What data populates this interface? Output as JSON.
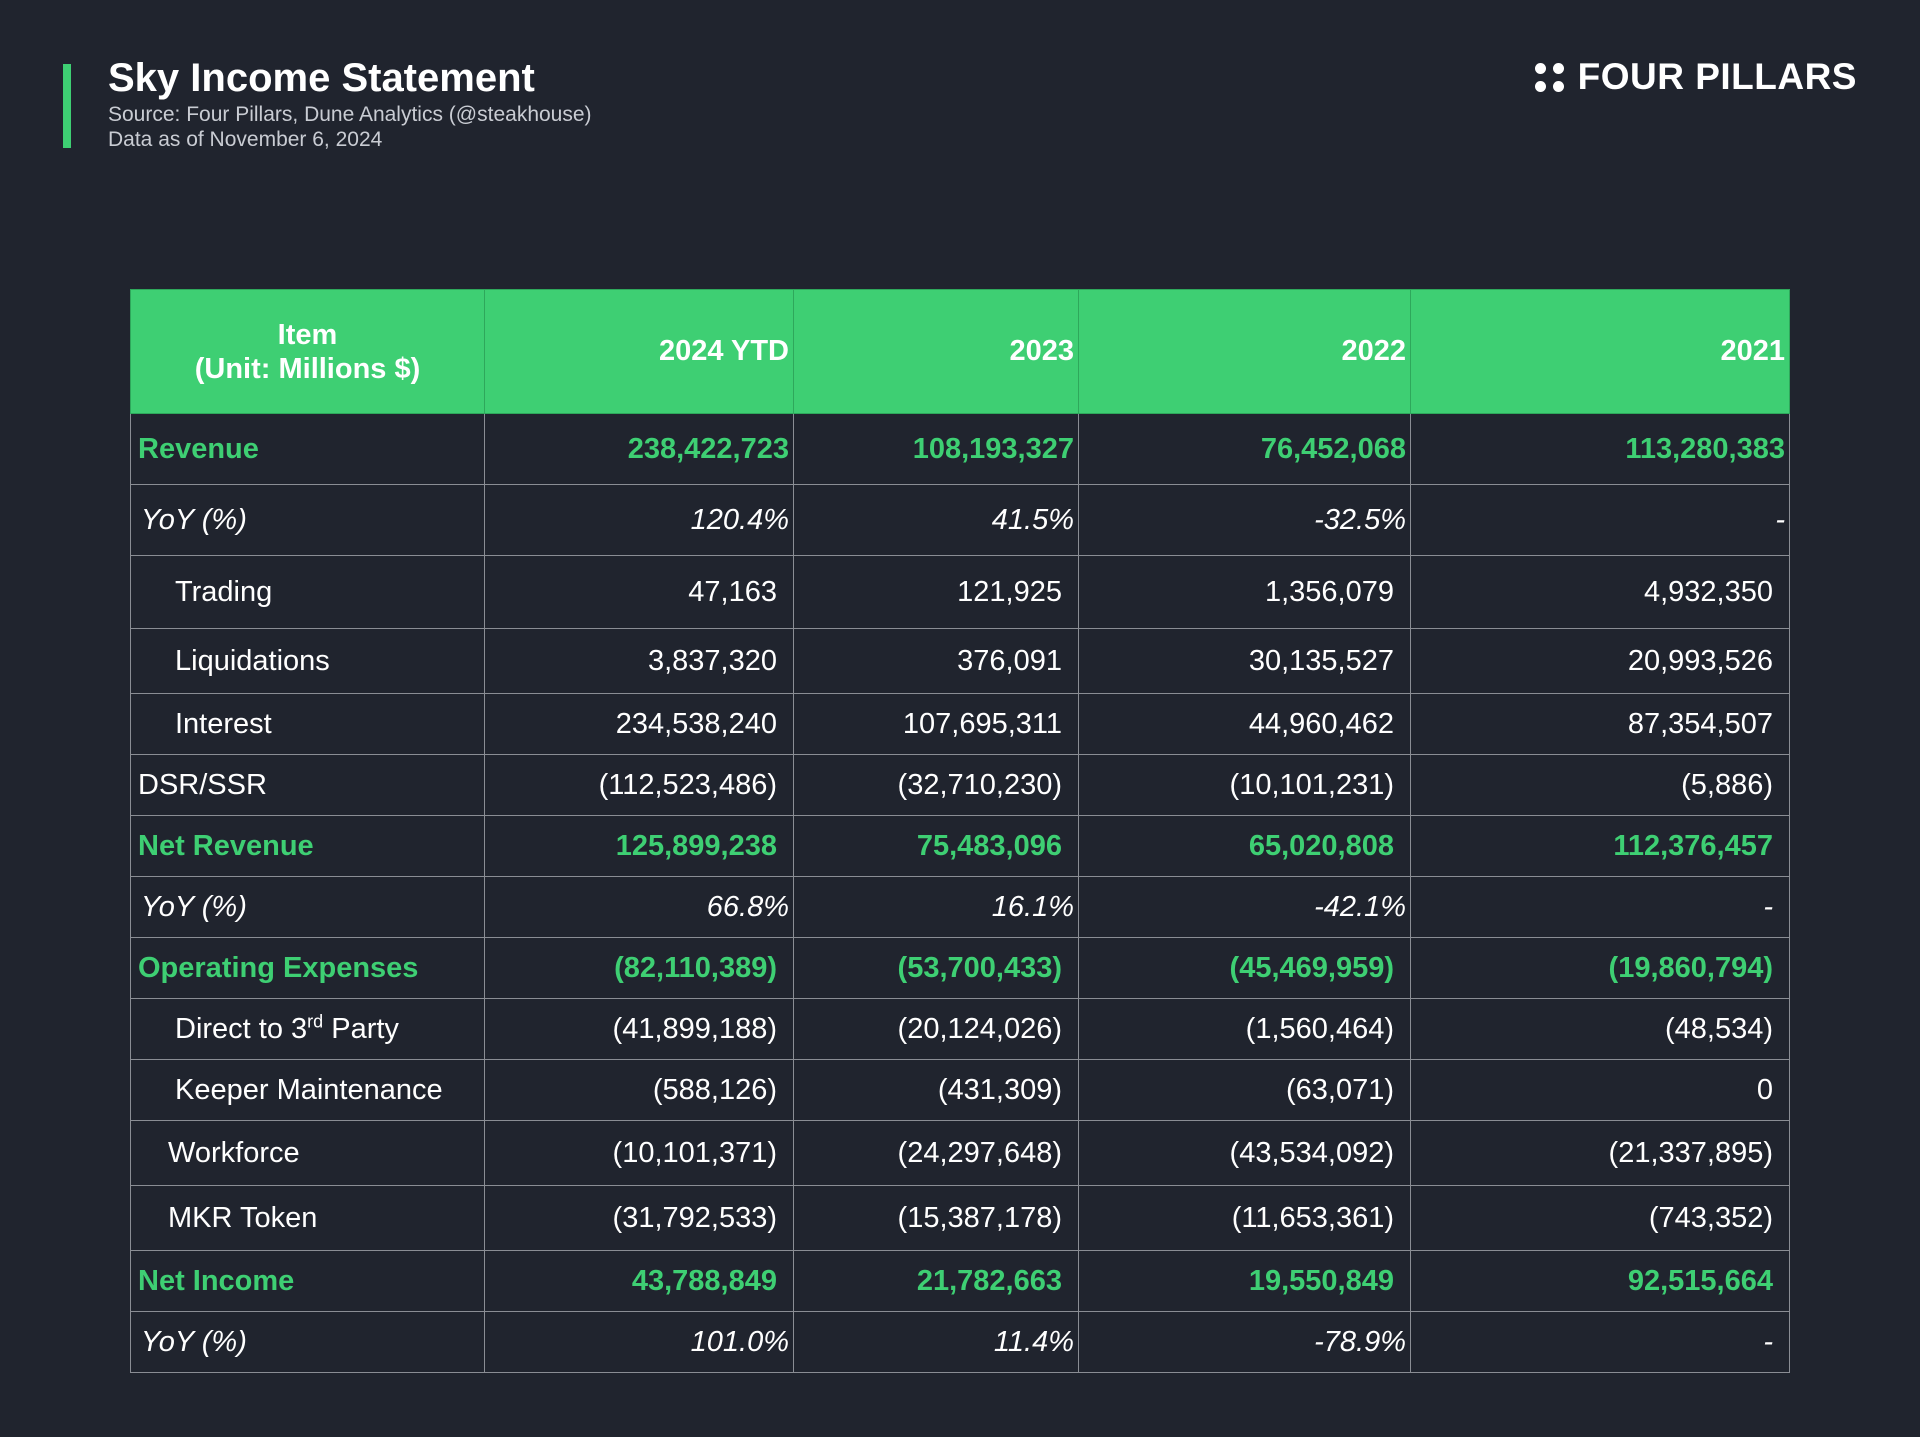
{
  "header": {
    "title": "Sky Income Statement",
    "source": "Source:  Four Pillars, Dune Analytics (@steakhouse)",
    "as_of": "Data as of November 6, 2024",
    "accent_color": "#3ecf73"
  },
  "brand": {
    "name": "FOUR PILLARS",
    "icon": "four-dots-icon"
  },
  "chart_data": {
    "type": "table",
    "columns": [
      "Item",
      "(Unit: Millions $)",
      "2024 YTD",
      "2023",
      "2022",
      "2021"
    ],
    "header_line1": "Item",
    "header_line2": "(Unit: Millions $)",
    "years": [
      "2024 YTD",
      "2023",
      "2022",
      "2021"
    ],
    "rows": [
      {
        "label": "Revenue",
        "values": [
          "238,422,723",
          "108,193,327",
          "76,452,068",
          "113,280,383"
        ]
      },
      {
        "label": "YoY (%)",
        "values": [
          "120.4%",
          "41.5%",
          "-32.5%",
          "-"
        ]
      },
      {
        "label": "Trading",
        "values": [
          "47,163",
          "121,925",
          "1,356,079",
          "4,932,350"
        ]
      },
      {
        "label": "Liquidations",
        "values": [
          "3,837,320",
          "376,091",
          "30,135,527",
          "20,993,526"
        ]
      },
      {
        "label": "Interest",
        "values": [
          "234,538,240",
          "107,695,311",
          "44,960,462",
          "87,354,507"
        ]
      },
      {
        "label": "DSR/SSR",
        "values": [
          "(112,523,486)",
          "(32,710,230)",
          "(10,101,231)",
          "(5,886)"
        ]
      },
      {
        "label": "Net Revenue",
        "values": [
          "125,899,238",
          "75,483,096",
          "65,020,808",
          "112,376,457"
        ]
      },
      {
        "label": "YoY (%)",
        "values": [
          "66.8%",
          "16.1%",
          "-42.1%",
          "-"
        ]
      },
      {
        "label": "Operating Expenses",
        "values": [
          "(82,110,389)",
          "(53,700,433)",
          "(45,469,959)",
          "(19,860,794)"
        ]
      },
      {
        "label": "Direct to 3rd Party",
        "label_base": "Direct to 3",
        "label_sup": "rd",
        "label_tail": " Party",
        "values": [
          "(41,899,188)",
          "(20,124,026)",
          "(1,560,464)",
          "(48,534)"
        ]
      },
      {
        "label": "Keeper Maintenance",
        "values": [
          "(588,126)",
          "(431,309)",
          "(63,071)",
          "0"
        ]
      },
      {
        "label": "Workforce",
        "values": [
          "(10,101,371)",
          "(24,297,648)",
          "(43,534,092)",
          "(21,337,895)"
        ]
      },
      {
        "label": "MKR Token",
        "values": [
          "(31,792,533)",
          "(15,387,178)",
          "(11,653,361)",
          "(743,352)"
        ]
      },
      {
        "label": "Net Income",
        "values": [
          "43,788,849",
          "21,782,663",
          "19,550,849",
          "92,515,664"
        ]
      },
      {
        "label": "YoY (%)",
        "values": [
          "101.0%",
          "11.4%",
          "-78.9%",
          "-"
        ]
      }
    ],
    "highlight_rows": [
      "Revenue",
      "Net Revenue",
      "Operating Expenses",
      "Net Income"
    ],
    "header_color": "#3ecf73",
    "highlight_color": "#3ecf73"
  }
}
